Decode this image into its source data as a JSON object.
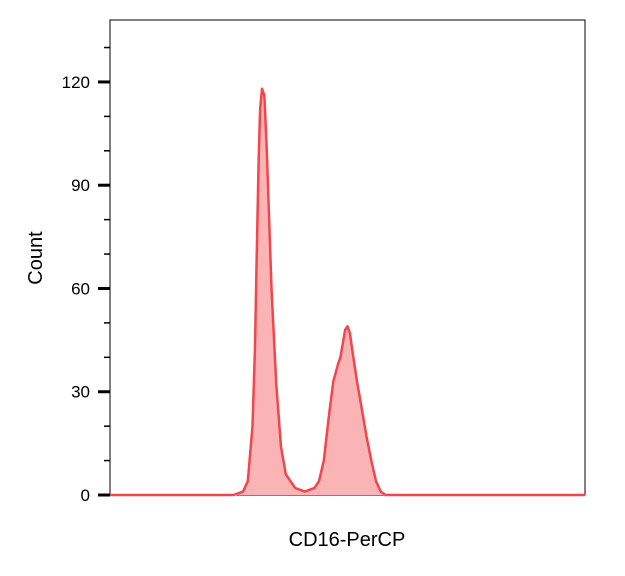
{
  "chart_data": {
    "type": "area",
    "title": "",
    "xlabel": "CD16-PerCP",
    "ylabel": "Count",
    "ylim": [
      0,
      138
    ],
    "xlim": [
      0,
      1
    ],
    "yticks": [
      0,
      30,
      60,
      90,
      120
    ],
    "ytick_labels": [
      "0",
      "30",
      "60",
      "90",
      "120"
    ],
    "grid": false,
    "legend": "none",
    "colors": {
      "line": "#f0474c",
      "fill": "#fbb4b6"
    },
    "series": [
      {
        "x": [
          0.0,
          0.05,
          0.1,
          0.15,
          0.2,
          0.24,
          0.26,
          0.27,
          0.28,
          0.29,
          0.3,
          0.305,
          0.31,
          0.313,
          0.316,
          0.32,
          0.325,
          0.33,
          0.34,
          0.35,
          0.36,
          0.37,
          0.38,
          0.39,
          0.41,
          0.42,
          0.43,
          0.44,
          0.45,
          0.46,
          0.47,
          0.48,
          0.485,
          0.49,
          0.495,
          0.5,
          0.505,
          0.51,
          0.52,
          0.53,
          0.54,
          0.55,
          0.56,
          0.57,
          0.58,
          0.59,
          0.6,
          0.65,
          0.7,
          0.8,
          0.9,
          1.0
        ],
        "y": [
          0,
          0,
          0,
          0,
          0,
          0,
          0,
          0.5,
          1,
          4,
          20,
          42,
          78,
          98,
          112,
          118,
          116,
          100,
          60,
          32,
          14,
          6,
          4,
          2,
          1,
          1.5,
          2,
          4,
          10,
          22,
          33,
          38,
          40,
          44,
          48,
          49,
          47,
          42,
          33,
          25,
          17,
          10,
          4,
          1,
          0,
          0,
          0,
          0,
          0,
          0,
          0,
          0
        ]
      }
    ]
  }
}
